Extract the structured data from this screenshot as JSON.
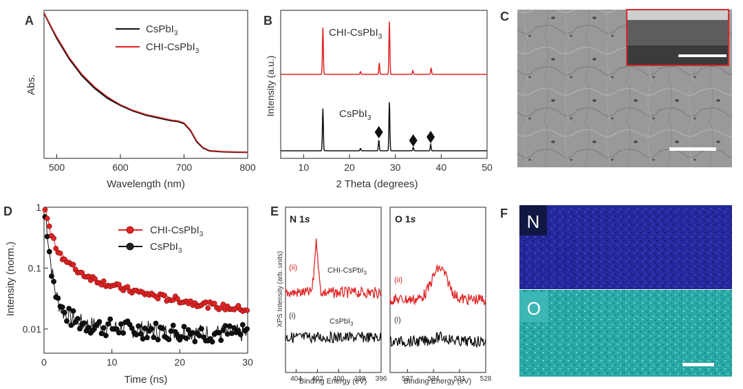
{
  "figure": {
    "panel_letters": [
      "A",
      "B",
      "C",
      "D",
      "E",
      "F"
    ],
    "colors": {
      "csPbI3": "#111111",
      "chi": "#e02424",
      "sem_gray": "#9a9a9a",
      "eds_n": "#2b2fa8",
      "eds_o": "#2fb2b0",
      "inset_border": "#d42a2a"
    }
  },
  "chart_data": [
    {
      "panel": "A",
      "type": "line",
      "xlabel": "Wavelength (nm)",
      "ylabel": "Abs.",
      "xlim": [
        480,
        800
      ],
      "xticks": [
        500,
        600,
        700,
        800
      ],
      "legend_position": "top-right",
      "series": [
        {
          "name_base": "CsPbI",
          "name_sub": "3",
          "color": "#111111",
          "x": [
            480,
            500,
            520,
            540,
            560,
            580,
            600,
            620,
            640,
            660,
            680,
            690,
            700,
            710,
            720,
            730,
            740,
            760,
            780,
            800
          ],
          "y": [
            1.0,
            0.82,
            0.67,
            0.55,
            0.46,
            0.39,
            0.34,
            0.3,
            0.27,
            0.25,
            0.23,
            0.225,
            0.21,
            0.16,
            0.08,
            0.035,
            0.015,
            0.008,
            0.005,
            0.004
          ]
        },
        {
          "name_base": "CHI-CsPbI",
          "name_sub": "3",
          "color": "#e02424",
          "x": [
            480,
            500,
            520,
            540,
            560,
            580,
            600,
            620,
            640,
            660,
            680,
            690,
            700,
            710,
            720,
            730,
            740,
            760,
            780,
            800
          ],
          "y": [
            1.0,
            0.83,
            0.68,
            0.56,
            0.47,
            0.4,
            0.345,
            0.305,
            0.275,
            0.255,
            0.235,
            0.23,
            0.215,
            0.165,
            0.085,
            0.038,
            0.017,
            0.009,
            0.006,
            0.005
          ]
        }
      ]
    },
    {
      "panel": "B",
      "type": "line",
      "xlabel": "2 Theta (degrees)",
      "ylabel": "Intensity (a.u.)",
      "xlim": [
        5,
        50
      ],
      "xticks": [
        10,
        20,
        30,
        40,
        50
      ],
      "series": [
        {
          "label_base": "CHI-CsPbI",
          "label_sub": "3",
          "color": "#e02424",
          "peaks": [
            [
              14.2,
              1.0
            ],
            [
              22.4,
              0.06
            ],
            [
              26.5,
              0.25
            ],
            [
              28.7,
              1.15
            ],
            [
              33.8,
              0.08
            ],
            [
              37.8,
              0.14
            ]
          ]
        },
        {
          "label_base": "CsPbI",
          "label_sub": "3",
          "color": "#111111",
          "peaks": [
            [
              14.2,
              0.85
            ],
            [
              22.4,
              0.05
            ],
            [
              26.4,
              0.22
            ],
            [
              28.7,
              1.0
            ],
            [
              33.9,
              0.07
            ],
            [
              37.7,
              0.13
            ]
          ]
        }
      ],
      "markers": [
        26.4,
        33.9,
        37.7
      ]
    },
    {
      "panel": "D",
      "type": "scatter",
      "xlabel": "Time (ns)",
      "ylabel": "Intensity (norm.)",
      "xlim": [
        0,
        30
      ],
      "ylim": [
        0.004,
        1
      ],
      "log_y": true,
      "xticks": [
        0,
        10,
        20,
        30
      ],
      "yticks": [
        1,
        0.1,
        0.01
      ],
      "ytick_labels": [
        "1",
        "0.1",
        "0.01"
      ],
      "legend_position": "top-right",
      "series": [
        {
          "name_base": "CHI-CsPbI",
          "name_sub": "3",
          "color": "#e02424",
          "t": [
            0.3,
            0.6,
            1,
            1.5,
            2,
            3,
            4,
            5,
            6,
            8,
            10,
            12,
            14,
            16,
            18,
            20,
            22,
            24,
            26,
            28,
            30
          ],
          "y": [
            0.85,
            0.55,
            0.38,
            0.26,
            0.2,
            0.14,
            0.11,
            0.09,
            0.078,
            0.062,
            0.052,
            0.045,
            0.04,
            0.036,
            0.032,
            0.03,
            0.027,
            0.025,
            0.023,
            0.022,
            0.021
          ]
        },
        {
          "name_base": "CsPbI",
          "name_sub": "3",
          "color": "#111111",
          "t": [
            0.3,
            0.6,
            1,
            1.5,
            2,
            2.5,
            3,
            4,
            5,
            6,
            8,
            10,
            12,
            14,
            16,
            18,
            20,
            22,
            24,
            26,
            28,
            30
          ],
          "y": [
            0.7,
            0.3,
            0.12,
            0.05,
            0.03,
            0.022,
            0.018,
            0.015,
            0.013,
            0.012,
            0.011,
            0.0105,
            0.01,
            0.0098,
            0.0095,
            0.009,
            0.009,
            0.0088,
            0.0086,
            0.0085,
            0.0085,
            0.0084
          ]
        }
      ]
    },
    {
      "panel": "E",
      "type": "line",
      "ylabel": "XPS Intensity (arb. units)",
      "xlabel": "Binding Energy (eV)",
      "subplots": [
        {
          "title_base": "N 1",
          "title_italic": "s",
          "xlim": [
            405,
            396
          ],
          "xticks": [
            404,
            402,
            400,
            398,
            396
          ],
          "series": [
            {
              "tag": "(ii)",
              "label_base": "CHI-CsPbI",
              "label_sub": "3",
              "color": "#e02424",
              "peak_center": 402.1,
              "peak_height": 1.0
            },
            {
              "tag": "(i)",
              "label_base": "CsPbI",
              "label_sub": "3",
              "color": "#111111",
              "peak_center": null,
              "peak_height": 0
            }
          ]
        },
        {
          "title_base": "O 1",
          "title_italic": "s",
          "xlim": [
            539,
            528
          ],
          "xticks": [
            537,
            534,
            531,
            528
          ],
          "series": [
            {
              "tag": "(ii)",
              "color": "#e02424",
              "peak_center": 533.3,
              "peak_height": 0.9
            },
            {
              "tag": "(i)",
              "color": "#111111",
              "peak_center": 533.1,
              "peak_height": 0.3
            }
          ]
        }
      ]
    }
  ],
  "images": {
    "C": {
      "kind": "SEM micrograph",
      "inset": "cross-section"
    },
    "F": {
      "kind": "EDS map",
      "labels": [
        "N",
        "O"
      ]
    }
  }
}
